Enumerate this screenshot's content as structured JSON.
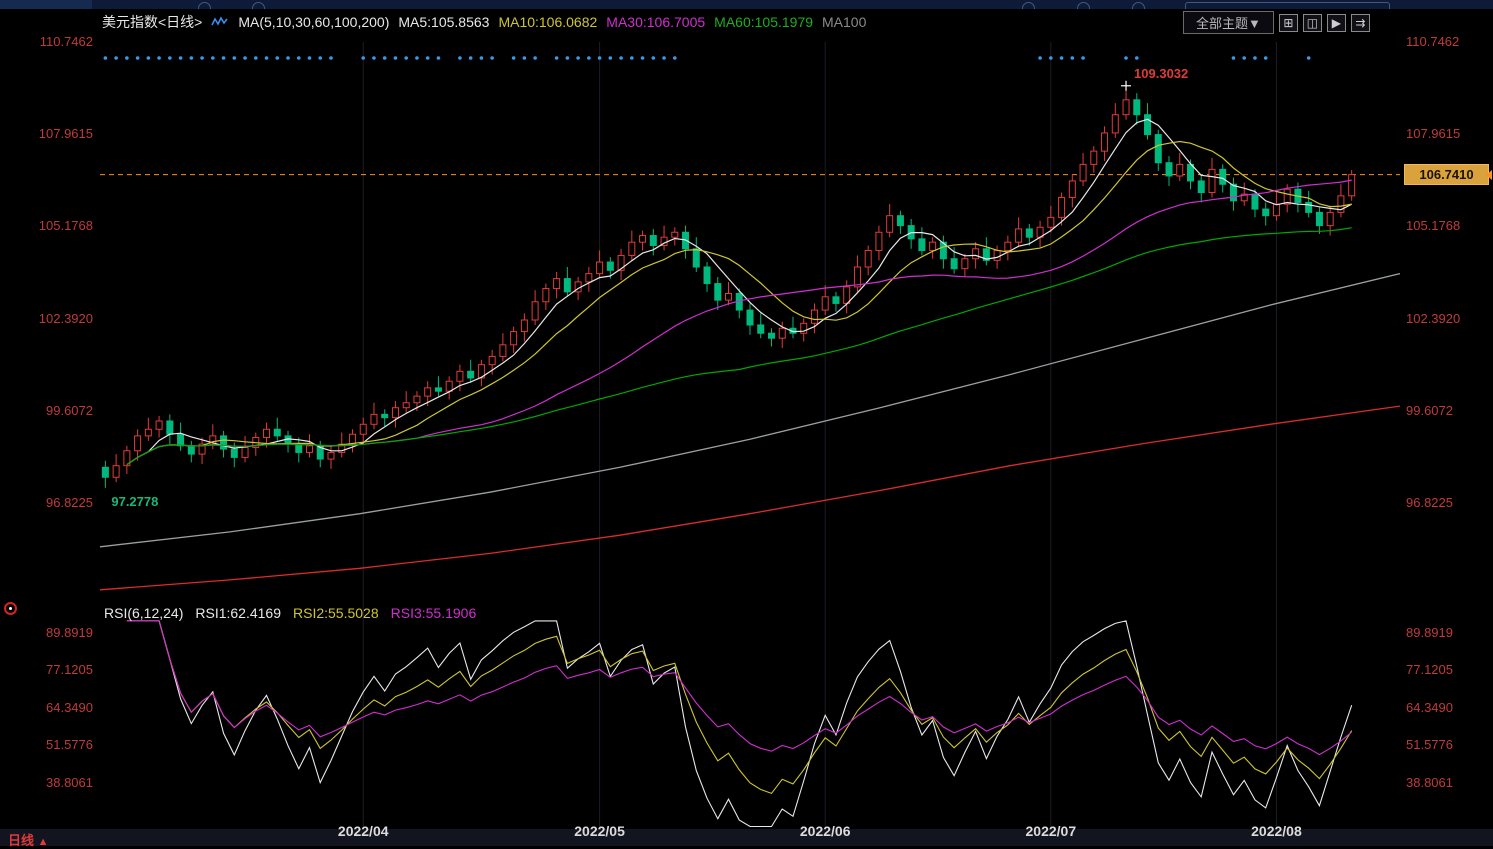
{
  "header": {
    "symbol": "美元指数",
    "period_tag": "<日线>",
    "ma_group_label": "MA(5,10,30,60,100,200)",
    "ma_values": [
      {
        "name": "MA5",
        "label": "MA5:105.8563"
      },
      {
        "name": "MA10",
        "label": "MA10:106.0682"
      },
      {
        "name": "MA30",
        "label": "MA30:106.7005"
      },
      {
        "name": "MA60",
        "label": "MA60:105.1979"
      },
      {
        "name": "MA100",
        "label": "MA100"
      }
    ],
    "theme_button": "全部主题▼",
    "layout_icons": [
      "⊞",
      "◫",
      "▶",
      "⇉"
    ]
  },
  "price_axis": {
    "labels": [
      "110.7462",
      "107.9615",
      "105.1768",
      "102.3920",
      "99.6072",
      "96.8225"
    ],
    "last_price_tag": "106.7410"
  },
  "annotations": {
    "high": "109.3032",
    "low": "97.2778"
  },
  "rsi_panel": {
    "title": "RSI(6,12,24)",
    "rsi1": "RSI1:62.4169",
    "rsi2": "RSI2:55.5028",
    "rsi3": "RSI3:55.1906",
    "axis_labels": [
      "89.8919",
      "77.1205",
      "64.3490",
      "51.5776",
      "38.8061"
    ]
  },
  "bottom_bar": {
    "period": "日线",
    "arrow": "▲"
  },
  "colors": {
    "up": "#e23b3b",
    "down": "#00b97e",
    "ma5": "#e8e8e8",
    "ma10": "#cfc52f",
    "ma30": "#d02fd0",
    "ma60": "#00a800",
    "ma100": "#9aa0a0",
    "ma200": "#d92c2c",
    "axis_text": "#bf3b3b",
    "dashed_line": "#ff8f1f",
    "price_tag_bg": "#d9a23c",
    "signal_dot": "#3a9ae8",
    "month_text": "#dcdcdc"
  },
  "chart_data": {
    "type": "candlestick",
    "title": "美元指数 日线 (US Dollar Index, daily) with MA overlays and RSI sub-chart",
    "x_axis": {
      "labels": [
        "2022/04",
        "2022/05",
        "2022/06",
        "2022/07",
        "2022/08"
      ],
      "tick_indices": [
        24,
        46,
        67,
        88,
        109
      ]
    },
    "y_axis": {
      "min": 93.9,
      "max": 110.7462,
      "tick_values": [
        110.7462,
        107.9615,
        105.1768,
        102.392,
        99.6072,
        96.8225
      ]
    },
    "last_price": 106.741,
    "high_label": {
      "index": 95,
      "value": 109.3032
    },
    "low_label": {
      "index": 0,
      "value": 97.2778
    },
    "candles_ohlc": [
      [
        97.9,
        98.1,
        97.28,
        97.6
      ],
      [
        97.6,
        98.3,
        97.45,
        97.95
      ],
      [
        97.95,
        98.55,
        97.7,
        98.4
      ],
      [
        98.4,
        99.05,
        98.1,
        98.85
      ],
      [
        98.85,
        99.4,
        98.7,
        99.05
      ],
      [
        99.05,
        99.45,
        98.8,
        99.3
      ],
      [
        99.3,
        99.5,
        98.6,
        98.9
      ],
      [
        98.9,
        99.25,
        98.4,
        98.55
      ],
      [
        98.55,
        98.7,
        98.05,
        98.3
      ],
      [
        98.3,
        98.8,
        98.0,
        98.6
      ],
      [
        98.6,
        99.2,
        98.45,
        98.85
      ],
      [
        98.85,
        99.0,
        98.2,
        98.45
      ],
      [
        98.45,
        98.65,
        97.9,
        98.2
      ],
      [
        98.2,
        98.85,
        98.05,
        98.5
      ],
      [
        98.5,
        98.95,
        98.25,
        98.8
      ],
      [
        98.8,
        99.25,
        98.5,
        99.05
      ],
      [
        99.05,
        99.4,
        98.7,
        98.85
      ],
      [
        98.85,
        99.0,
        98.35,
        98.6
      ],
      [
        98.6,
        98.8,
        98.05,
        98.35
      ],
      [
        98.35,
        98.9,
        98.2,
        98.55
      ],
      [
        98.55,
        98.7,
        97.9,
        98.15
      ],
      [
        98.15,
        98.55,
        97.85,
        98.35
      ],
      [
        98.35,
        98.95,
        98.2,
        98.6
      ],
      [
        98.6,
        99.05,
        98.35,
        98.9
      ],
      [
        98.9,
        99.4,
        98.6,
        99.2
      ],
      [
        99.2,
        99.85,
        99.05,
        99.5
      ],
      [
        99.5,
        99.65,
        99.15,
        99.4
      ],
      [
        99.4,
        99.9,
        99.1,
        99.7
      ],
      [
        99.7,
        100.2,
        99.55,
        99.85
      ],
      [
        99.85,
        100.2,
        99.6,
        100.05
      ],
      [
        100.05,
        100.5,
        99.75,
        100.3
      ],
      [
        100.3,
        100.65,
        100.05,
        100.2
      ],
      [
        100.2,
        100.65,
        99.95,
        100.5
      ],
      [
        100.5,
        101.0,
        100.2,
        100.8
      ],
      [
        100.8,
        101.15,
        100.45,
        100.6
      ],
      [
        100.6,
        101.15,
        100.35,
        101.0
      ],
      [
        101.0,
        101.45,
        100.7,
        101.25
      ],
      [
        101.25,
        101.95,
        101.1,
        101.6
      ],
      [
        101.6,
        102.15,
        101.35,
        102.0
      ],
      [
        102.0,
        102.55,
        101.7,
        102.35
      ],
      [
        102.35,
        103.25,
        102.2,
        102.9
      ],
      [
        102.9,
        103.45,
        102.65,
        103.3
      ],
      [
        103.3,
        103.8,
        103.0,
        103.6
      ],
      [
        103.6,
        103.95,
        103.05,
        103.2
      ],
      [
        103.2,
        103.65,
        102.95,
        103.5
      ],
      [
        103.5,
        103.95,
        103.2,
        103.75
      ],
      [
        103.75,
        104.45,
        103.6,
        104.1
      ],
      [
        104.1,
        104.25,
        103.6,
        103.85
      ],
      [
        103.85,
        104.5,
        103.55,
        104.3
      ],
      [
        104.3,
        105.05,
        104.15,
        104.7
      ],
      [
        104.7,
        105.05,
        104.45,
        104.9
      ],
      [
        104.9,
        105.1,
        104.3,
        104.6
      ],
      [
        104.6,
        105.2,
        104.45,
        104.85
      ],
      [
        104.85,
        105.15,
        104.6,
        105.0
      ],
      [
        105.0,
        105.2,
        104.2,
        104.5
      ],
      [
        104.5,
        104.85,
        103.8,
        103.95
      ],
      [
        103.95,
        104.1,
        103.2,
        103.45
      ],
      [
        103.45,
        103.65,
        102.65,
        102.95
      ],
      [
        102.95,
        103.5,
        102.8,
        103.15
      ],
      [
        103.15,
        103.3,
        102.4,
        102.65
      ],
      [
        102.65,
        102.85,
        101.9,
        102.2
      ],
      [
        102.2,
        102.55,
        101.8,
        101.95
      ],
      [
        101.95,
        102.1,
        101.55,
        101.8
      ],
      [
        101.8,
        102.3,
        101.5,
        102.1
      ],
      [
        102.1,
        102.45,
        101.8,
        101.95
      ],
      [
        101.95,
        102.4,
        101.7,
        102.25
      ],
      [
        102.25,
        102.85,
        101.95,
        102.65
      ],
      [
        102.65,
        103.4,
        102.5,
        103.05
      ],
      [
        103.05,
        103.2,
        102.6,
        102.85
      ],
      [
        102.85,
        103.55,
        102.55,
        103.35
      ],
      [
        103.35,
        104.3,
        103.2,
        103.95
      ],
      [
        103.95,
        104.6,
        103.7,
        104.45
      ],
      [
        104.45,
        105.2,
        104.15,
        105.0
      ],
      [
        105.0,
        105.85,
        104.85,
        105.5
      ],
      [
        105.5,
        105.65,
        104.95,
        105.2
      ],
      [
        105.2,
        105.4,
        104.5,
        104.8
      ],
      [
        104.8,
        105.15,
        104.3,
        104.45
      ],
      [
        104.45,
        104.85,
        104.2,
        104.7
      ],
      [
        104.7,
        104.9,
        103.9,
        104.2
      ],
      [
        104.2,
        104.55,
        103.75,
        103.9
      ],
      [
        103.9,
        104.35,
        103.65,
        104.2
      ],
      [
        104.2,
        104.7,
        103.9,
        104.5
      ],
      [
        104.5,
        104.85,
        104.0,
        104.15
      ],
      [
        104.15,
        104.6,
        103.9,
        104.45
      ],
      [
        104.45,
        104.9,
        104.15,
        104.7
      ],
      [
        104.7,
        105.45,
        104.55,
        105.1
      ],
      [
        105.1,
        105.25,
        104.6,
        104.85
      ],
      [
        104.85,
        105.35,
        104.55,
        105.15
      ],
      [
        105.15,
        105.8,
        105.0,
        105.45
      ],
      [
        105.45,
        106.2,
        105.2,
        106.05
      ],
      [
        106.05,
        106.75,
        105.75,
        106.55
      ],
      [
        106.55,
        107.4,
        106.4,
        107.05
      ],
      [
        107.05,
        107.6,
        106.8,
        107.45
      ],
      [
        107.45,
        108.2,
        107.15,
        108.0
      ],
      [
        108.0,
        108.9,
        107.85,
        108.55
      ],
      [
        108.55,
        109.3,
        108.4,
        109.0
      ],
      [
        109.0,
        109.2,
        108.25,
        108.55
      ],
      [
        108.55,
        108.9,
        107.8,
        107.95
      ],
      [
        107.95,
        108.1,
        106.85,
        107.1
      ],
      [
        107.1,
        107.3,
        106.4,
        106.7
      ],
      [
        106.7,
        107.4,
        106.55,
        107.05
      ],
      [
        107.05,
        107.2,
        106.3,
        106.55
      ],
      [
        106.55,
        106.75,
        105.9,
        106.2
      ],
      [
        106.2,
        107.25,
        106.05,
        106.9
      ],
      [
        106.9,
        107.05,
        106.2,
        106.45
      ],
      [
        106.45,
        106.65,
        105.65,
        105.95
      ],
      [
        105.95,
        106.5,
        105.8,
        106.15
      ],
      [
        106.15,
        106.3,
        105.45,
        105.7
      ],
      [
        105.7,
        105.9,
        105.2,
        105.5
      ],
      [
        105.5,
        106.2,
        105.35,
        105.85
      ],
      [
        105.85,
        106.45,
        105.6,
        106.3
      ],
      [
        106.3,
        106.5,
        105.6,
        105.9
      ],
      [
        105.9,
        106.25,
        105.45,
        105.6
      ],
      [
        105.6,
        105.75,
        104.95,
        105.2
      ],
      [
        105.2,
        105.8,
        104.9,
        105.6
      ],
      [
        105.6,
        106.45,
        105.45,
        106.1
      ],
      [
        106.1,
        106.88,
        105.95,
        106.74
      ]
    ],
    "overlays": [
      {
        "name": "MA5",
        "type": "sma",
        "period": 5,
        "color": "#e8e8e8"
      },
      {
        "name": "MA10",
        "type": "sma",
        "period": 10,
        "color": "#cfc52f"
      },
      {
        "name": "MA30",
        "type": "sma",
        "period": 30,
        "color": "#d02fd0"
      },
      {
        "name": "MA60",
        "type": "sma",
        "period": 60,
        "color": "#00a800"
      },
      {
        "name": "MA100",
        "type": "points",
        "color": "#9aa0a0",
        "points": [
          [
            0,
            95.5
          ],
          [
            0.1,
            95.95
          ],
          [
            0.2,
            96.5
          ],
          [
            0.3,
            97.15
          ],
          [
            0.4,
            97.9
          ],
          [
            0.5,
            98.75
          ],
          [
            0.6,
            99.7
          ],
          [
            0.7,
            100.7
          ],
          [
            0.8,
            101.75
          ],
          [
            0.9,
            102.8
          ],
          [
            1,
            103.75
          ]
        ]
      },
      {
        "name": "MA200",
        "type": "points",
        "color": "#d92c2c",
        "points": [
          [
            0,
            94.2
          ],
          [
            0.1,
            94.5
          ],
          [
            0.2,
            94.85
          ],
          [
            0.3,
            95.3
          ],
          [
            0.4,
            95.85
          ],
          [
            0.5,
            96.5
          ],
          [
            0.6,
            97.2
          ],
          [
            0.7,
            97.95
          ],
          [
            0.8,
            98.6
          ],
          [
            0.9,
            99.2
          ],
          [
            1,
            99.75
          ]
        ]
      }
    ],
    "signal_dot_ranges": [
      [
        0,
        21
      ],
      [
        24,
        31
      ],
      [
        33,
        36
      ],
      [
        38,
        40
      ],
      [
        42,
        53
      ],
      [
        87,
        91
      ],
      [
        95,
        96
      ],
      [
        105,
        108
      ],
      [
        112,
        112
      ]
    ],
    "sub_chart": {
      "type": "line",
      "name": "RSI(6,12,24)",
      "series": [
        {
          "name": "RSI1",
          "period": 6,
          "color": "#e8e8e8",
          "last_value": 62.4169
        },
        {
          "name": "RSI2",
          "period": 12,
          "color": "#cfc52f",
          "last_value": 55.5028
        },
        {
          "name": "RSI3",
          "period": 24,
          "color": "#d02fd0",
          "last_value": 55.1906
        }
      ],
      "y_ticks": [
        89.8919,
        77.1205,
        64.349,
        51.5776,
        38.8061
      ]
    }
  }
}
